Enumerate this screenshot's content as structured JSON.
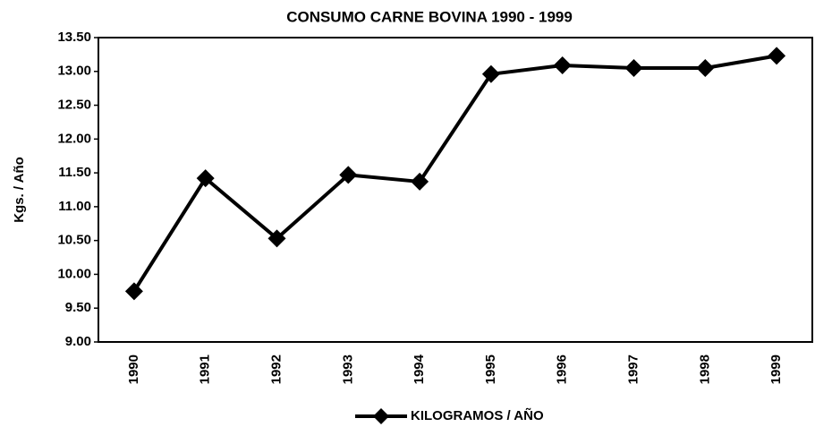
{
  "chart_data": {
    "type": "line",
    "title": "CONSUMO CARNE BOVINA 1990 - 1999",
    "y_label": "Kgs. / Año",
    "categories": [
      "1990",
      "1991",
      "1992",
      "1993",
      "1994",
      "1995",
      "1996",
      "1997",
      "1998",
      "1999"
    ],
    "series": [
      {
        "name": "KILOGRAMOS / AÑO",
        "color": "#000000",
        "values": [
          9.75,
          11.42,
          10.53,
          11.47,
          11.37,
          12.96,
          13.09,
          13.05,
          13.05,
          13.23
        ]
      }
    ],
    "ylim": [
      9,
      13.5
    ],
    "yticks": [
      {
        "value": 9,
        "label": "9.00"
      },
      {
        "value": 9.5,
        "label": "9.50"
      },
      {
        "value": 10,
        "label": "10.00"
      },
      {
        "value": 10.5,
        "label": "10.50"
      },
      {
        "value": 11,
        "label": "11.00"
      },
      {
        "value": 11.5,
        "label": "11.50"
      },
      {
        "value": 12,
        "label": "12.00"
      },
      {
        "value": 12.5,
        "label": "12.50"
      },
      {
        "value": 13,
        "label": "13.00"
      },
      {
        "value": 13.5,
        "label": "13.50"
      }
    ],
    "grid": false,
    "legend": "bottom"
  }
}
